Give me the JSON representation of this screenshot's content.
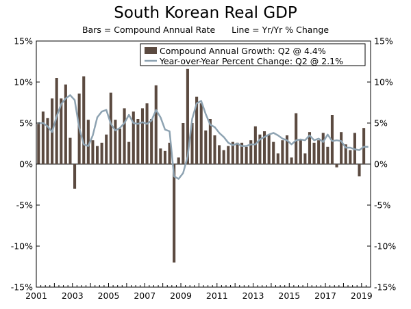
{
  "chart_data": {
    "type": "bar",
    "title": "South Korean Real GDP",
    "subtitle_bars": "Bars = Compound Annual Rate",
    "subtitle_line": "Line = Yr/Yr % Change",
    "ylim": [
      -15,
      15
    ],
    "y_ticks": [
      "15%",
      "10%",
      "5%",
      "0%",
      "-5%",
      "-10%",
      "-15%"
    ],
    "x_ticks": [
      "2001",
      "2003",
      "2005",
      "2007",
      "2009",
      "2011",
      "2013",
      "2015",
      "2017",
      "2019"
    ],
    "x_start_year": 2001,
    "quarters": 74,
    "legend_position": "top-right",
    "colors": {
      "bars": "#5b4a40",
      "line": "#8ea3b2",
      "axis": "#000000"
    },
    "series": [
      {
        "name": "Compound Annual Growth: Q2 @ 4.4%",
        "kind": "bar",
        "values": [
          4.9,
          6.4,
          5.6,
          8.0,
          10.5,
          8.0,
          9.7,
          3.2,
          -3.0,
          8.6,
          10.7,
          5.4,
          2.9,
          2.2,
          2.6,
          3.6,
          8.7,
          5.4,
          4.3,
          6.8,
          2.7,
          6.4,
          5.5,
          6.8,
          7.4,
          5.5,
          9.6,
          1.9,
          1.6,
          2.6,
          -12.0,
          0.8,
          5.0,
          11.6,
          5.0,
          8.2,
          7.4,
          4.1,
          5.5,
          3.5,
          2.3,
          1.7,
          2.2,
          2.7,
          2.6,
          2.6,
          2.1,
          2.9,
          4.6,
          3.6,
          4.0,
          3.6,
          2.7,
          1.3,
          2.9,
          3.5,
          0.8,
          6.2,
          2.9,
          1.3,
          3.9,
          2.6,
          2.9,
          3.8,
          2.1,
          6.0,
          -0.4,
          3.9,
          2.4,
          1.7,
          3.8,
          -1.5,
          4.4,
          0.0
        ]
      },
      {
        "name": "Year-over-Year Percent Change: Q2 @ 2.1%",
        "kind": "line",
        "values": [
          5.0,
          5.0,
          4.6,
          3.9,
          5.8,
          7.3,
          8.0,
          8.4,
          7.8,
          4.4,
          2.4,
          2.2,
          3.5,
          5.7,
          6.4,
          6.6,
          4.9,
          4.1,
          4.4,
          5.0,
          6.0,
          5.0,
          4.9,
          5.1,
          4.9,
          5.3,
          6.6,
          5.7,
          4.2,
          4.0,
          -1.5,
          -1.8,
          -1.1,
          0.9,
          5.5,
          7.4,
          7.7,
          6.1,
          4.8,
          4.5,
          3.8,
          3.3,
          2.6,
          2.3,
          2.5,
          2.2,
          2.2,
          2.4,
          2.4,
          3.0,
          3.3,
          3.6,
          3.8,
          3.5,
          3.1,
          2.9,
          2.4,
          2.9,
          3.0,
          2.9,
          3.5,
          2.9,
          3.1,
          2.7,
          3.6,
          2.8,
          2.9,
          2.8,
          2.0,
          2.0,
          1.8,
          1.7,
          2.1,
          2.1
        ]
      }
    ]
  }
}
